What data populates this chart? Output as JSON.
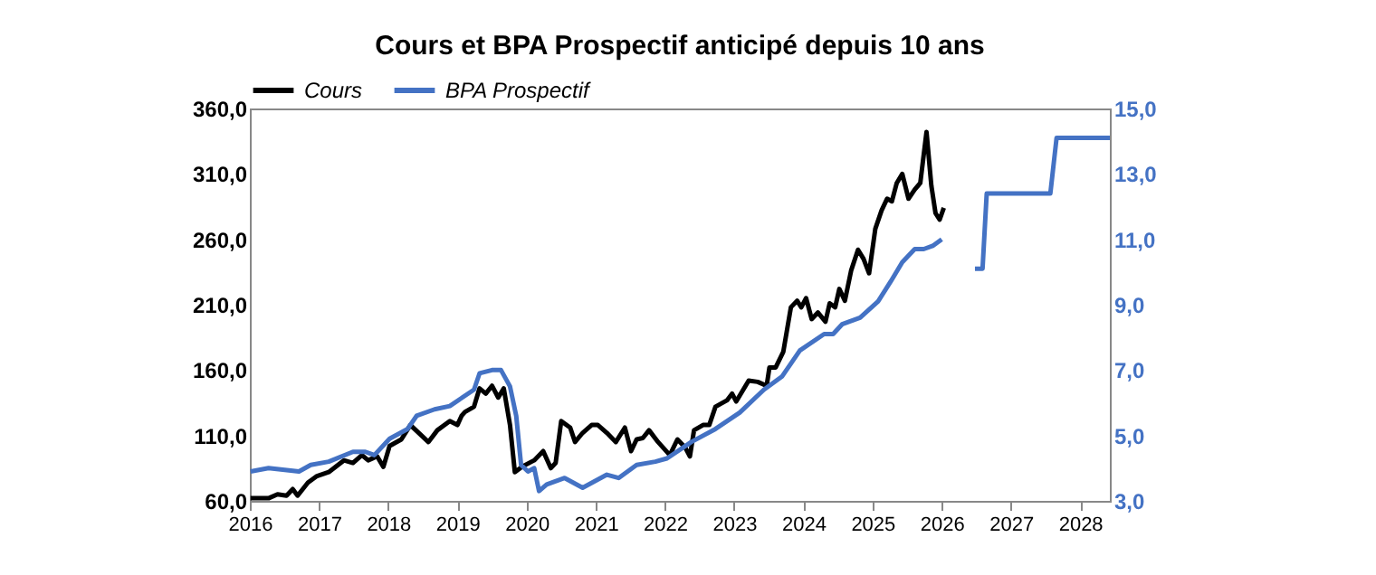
{
  "chart_data": {
    "type": "line",
    "title": "Cours et BPA Prospectif anticipé depuis 10 ans",
    "xlim": [
      2016,
      2028.43
    ],
    "xticks": [
      2016,
      2017,
      2018,
      2019,
      2020,
      2021,
      2022,
      2023,
      2024,
      2025,
      2026,
      2027,
      2028
    ],
    "ylim": [
      60,
      360
    ],
    "yticks": [
      {
        "value": 60,
        "label": "60,0"
      },
      {
        "value": 110,
        "label": "110,0"
      },
      {
        "value": 160,
        "label": "160,0"
      },
      {
        "value": 210,
        "label": "210,0"
      },
      {
        "value": 260,
        "label": "260,0"
      },
      {
        "value": 310,
        "label": "310,0"
      },
      {
        "value": 360,
        "label": "360,0"
      }
    ],
    "y2lim": [
      3,
      15
    ],
    "y2ticks": [
      {
        "value": 3,
        "label": "3,0"
      },
      {
        "value": 5,
        "label": "5,0"
      },
      {
        "value": 7,
        "label": "7,0"
      },
      {
        "value": 9,
        "label": "9,0"
      },
      {
        "value": 11,
        "label": "11,0"
      },
      {
        "value": 13,
        "label": "13,0"
      },
      {
        "value": 15,
        "label": "15,0"
      }
    ],
    "grid": false,
    "legend": "top",
    "marker": "none",
    "line_style": "solid",
    "series": [
      {
        "name": "Cours",
        "color": "#000000",
        "x": [
          2016.01,
          2016.27,
          2016.4,
          2016.53,
          2016.62,
          2016.69,
          2016.84,
          2016.97,
          2017.14,
          2017.36,
          2017.49,
          2017.62,
          2017.71,
          2017.84,
          2017.93,
          2018.02,
          2018.19,
          2018.32,
          2018.58,
          2018.71,
          2018.89,
          2019.0,
          2019.06,
          2019.11,
          2019.24,
          2019.32,
          2019.41,
          2019.5,
          2019.59,
          2019.67,
          2019.76,
          2019.83,
          2019.93,
          2020.11,
          2020.24,
          2020.35,
          2020.42,
          2020.5,
          2020.63,
          2020.7,
          2020.81,
          2020.94,
          2021.03,
          2021.16,
          2021.29,
          2021.42,
          2021.51,
          2021.59,
          2021.68,
          2021.77,
          2021.9,
          2022.07,
          2022.18,
          2022.29,
          2022.36,
          2022.42,
          2022.55,
          2022.64,
          2022.73,
          2022.9,
          2022.97,
          2023.03,
          2023.21,
          2023.34,
          2023.47,
          2023.51,
          2023.6,
          2023.71,
          2023.82,
          2023.91,
          2023.97,
          2024.04,
          2024.12,
          2024.21,
          2024.32,
          2024.38,
          2024.46,
          2024.52,
          2024.6,
          2024.69,
          2024.79,
          2024.87,
          2024.95,
          2025.04,
          2025.13,
          2025.21,
          2025.28,
          2025.35,
          2025.43,
          2025.52,
          2025.61,
          2025.69,
          2025.78,
          2025.85,
          2025.91,
          2025.97,
          2026.03
        ],
        "values": [
          62,
          62,
          65,
          64,
          69,
          64,
          74,
          79,
          82,
          91,
          89,
          95,
          91,
          94,
          86,
          102,
          107,
          118,
          105,
          114,
          121,
          118,
          125,
          128,
          132,
          146,
          142,
          148,
          139,
          146,
          118,
          82,
          86,
          91,
          98,
          85,
          89,
          121,
          116,
          105,
          112,
          118,
          118,
          112,
          105,
          116,
          98,
          107,
          108,
          114,
          105,
          95,
          107,
          101,
          94,
          114,
          118,
          118,
          132,
          137,
          142,
          136,
          152,
          151,
          148,
          162,
          162,
          174,
          208,
          213,
          208,
          215,
          199,
          204,
          197,
          211,
          208,
          222,
          213,
          236,
          252,
          245,
          234,
          268,
          282,
          291,
          289,
          303,
          310,
          291,
          298,
          303,
          342,
          301,
          280,
          275,
          284
        ]
      },
      {
        "name": "BPA Prospectif",
        "color": "#4472c4",
        "axis": "y2",
        "x": [
          2016.01,
          2016.27,
          2016.71,
          2016.88,
          2017.14,
          2017.49,
          2017.67,
          2017.8,
          2018.02,
          2018.28,
          2018.41,
          2018.67,
          2018.89,
          2019.24,
          2019.32,
          2019.5,
          2019.63,
          2019.76,
          2019.85,
          2019.92,
          2020.02,
          2020.11,
          2020.18,
          2020.29,
          2020.55,
          2020.81,
          2021.16,
          2021.33,
          2021.59,
          2021.86,
          2022.03,
          2022.38,
          2022.73,
          2023.08,
          2023.43,
          2023.69,
          2023.95,
          2024.3,
          2024.43,
          2024.56,
          2024.82,
          2025.08,
          2025.26,
          2025.43,
          2025.61,
          2025.74,
          2025.87,
          2026.0,
          2026.2,
          2026.48,
          2026.59,
          2026.65,
          2027.57,
          2027.66,
          2028.43
        ],
        "values": [
          3.9,
          4.0,
          3.9,
          4.1,
          4.2,
          4.5,
          4.5,
          4.4,
          4.9,
          5.2,
          5.6,
          5.8,
          5.9,
          6.4,
          6.9,
          7.0,
          7.0,
          6.5,
          5.6,
          4.1,
          3.9,
          4.0,
          3.3,
          3.5,
          3.7,
          3.4,
          3.8,
          3.7,
          4.1,
          4.2,
          4.3,
          4.8,
          5.2,
          5.7,
          6.4,
          6.8,
          7.6,
          8.1,
          8.1,
          8.4,
          8.6,
          9.1,
          9.7,
          10.3,
          10.7,
          10.7,
          10.8,
          11.0,
          null,
          10.1,
          10.1,
          12.4,
          12.4,
          14.1,
          14.1
        ]
      }
    ]
  }
}
